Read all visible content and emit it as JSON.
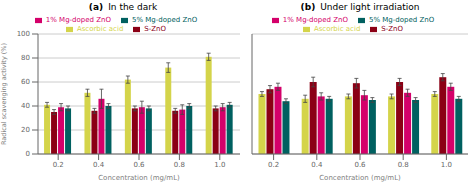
{
  "chart_data": [
    {
      "type": "bar",
      "title": "In the dark",
      "annotations": [
        "(a)"
      ],
      "xlabel": "Concentration (mg/mL)",
      "ylabel": "Radical scavenging activity (%)",
      "categories": [
        "0.2",
        "0.4",
        "0.6",
        "0.8",
        "1.0"
      ],
      "series": [
        {
          "name": "Ascorbic acid",
          "color": "#d4d44a",
          "values": [
            41,
            51,
            62,
            72,
            81
          ],
          "errors": [
            2,
            3,
            3,
            4,
            3
          ]
        },
        {
          "name": "S-ZnO",
          "color": "#8b0015",
          "values": [
            35,
            36,
            38,
            36,
            38
          ],
          "errors": [
            2,
            2,
            2,
            2,
            2
          ]
        },
        {
          "name": "1% Mg-doped ZnO",
          "color": "#d4006a",
          "values": [
            39,
            46,
            39,
            37,
            39
          ],
          "errors": [
            3,
            8,
            5,
            4,
            3
          ]
        },
        {
          "name": "5% Mg-doped ZnO",
          "color": "#006060",
          "values": [
            38,
            40,
            38,
            40,
            41
          ],
          "errors": [
            2,
            2,
            2,
            2,
            2
          ]
        }
      ],
      "ylim": [
        0,
        100
      ],
      "yticks": [
        0,
        20,
        40,
        60,
        80,
        100
      ],
      "grid": true,
      "legend": "top"
    },
    {
      "type": "bar",
      "title": "Under light irradiation",
      "annotations": [
        "(b)"
      ],
      "xlabel": "Concentration (mg/mL)",
      "categories": [
        "0.2",
        "0.4",
        "0.6",
        "0.8",
        "1.0"
      ],
      "series": [
        {
          "name": "Ascorbic acid",
          "color": "#d4d44a",
          "values": [
            50,
            46,
            48,
            48,
            50
          ],
          "errors": [
            2,
            3,
            2,
            2,
            2
          ]
        },
        {
          "name": "S-ZnO",
          "color": "#8b0015",
          "values": [
            54,
            60,
            59,
            60,
            64
          ],
          "errors": [
            3,
            4,
            4,
            3,
            3
          ]
        },
        {
          "name": "1% Mg-doped ZnO",
          "color": "#d4006a",
          "values": [
            56,
            48,
            49,
            51,
            56
          ],
          "errors": [
            3,
            3,
            4,
            3,
            3
          ]
        },
        {
          "name": "5% Mg-doped ZnO",
          "color": "#006060",
          "values": [
            44,
            46,
            45,
            45,
            46
          ],
          "errors": [
            2,
            2,
            2,
            2,
            2
          ]
        }
      ],
      "ylim": [
        0,
        100
      ],
      "yticks": [
        0,
        20,
        40,
        60,
        80,
        100
      ],
      "grid": true,
      "legend": "top",
      "tick_labels": "x"
    }
  ]
}
